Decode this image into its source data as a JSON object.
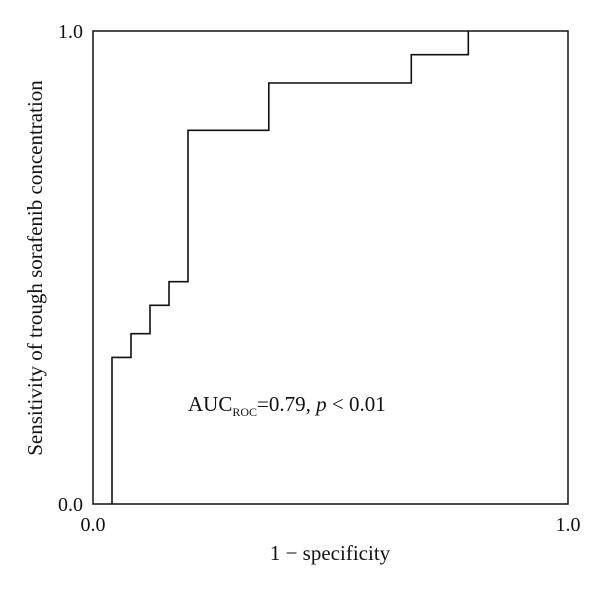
{
  "chart_data": {
    "type": "line",
    "title": "",
    "xlabel": "1 − specificity",
    "ylabel": "Sensitivity of trough sorafenib concentration",
    "xlim": [
      0,
      1
    ],
    "ylim": [
      0,
      1
    ],
    "x_ticks": [
      "0.0",
      "1.0"
    ],
    "y_ticks": [
      "0.0",
      "1.0"
    ],
    "grid": false,
    "legend": "none",
    "line_color": "#111111",
    "series": [
      {
        "x": [
          0.04,
          0.04,
          0.08,
          0.08,
          0.12,
          0.12,
          0.16,
          0.16,
          0.2,
          0.2,
          0.37,
          0.37,
          0.67,
          0.67,
          0.79,
          0.79
        ],
        "y": [
          0.0,
          0.31,
          0.31,
          0.36,
          0.36,
          0.42,
          0.42,
          0.47,
          0.47,
          0.79,
          0.79,
          0.89,
          0.89,
          0.95,
          0.95,
          1.0
        ]
      }
    ],
    "annotation": {
      "prefix": "AUC",
      "subscript": "ROC",
      "value_text": "=0.79, ",
      "p_symbol": "p",
      "p_text": " < 0.01"
    }
  }
}
